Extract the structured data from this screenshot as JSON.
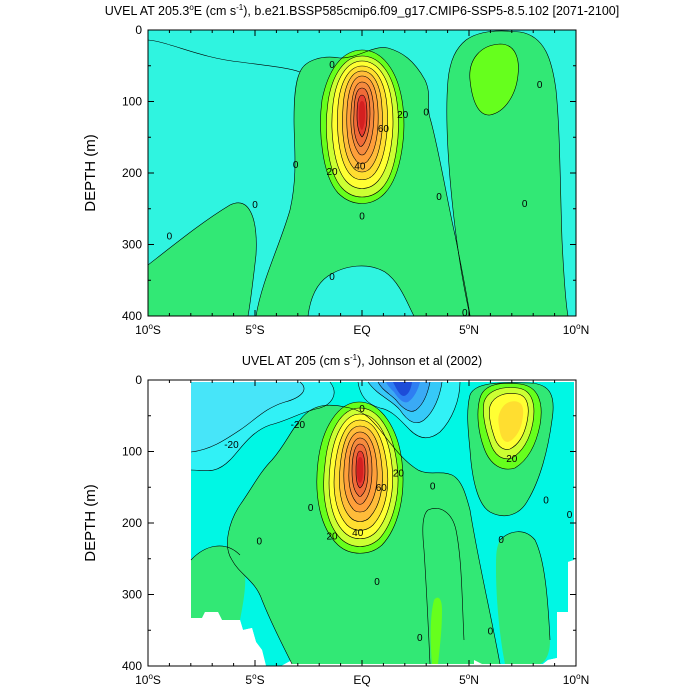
{
  "chart_data": [
    {
      "type": "heatmap",
      "subtype": "filled-contour",
      "title_main": "UVEL AT 205.3",
      "title_degree": "o",
      "title_mid": "E (cm s",
      "title_exp": "-1",
      "title_end": "), b.e21.BSSP585cmip6.f09_g17.CMIP6-SSP5-8.5.102 [2071-2100]",
      "ylabel": "DEPTH (m)",
      "xlim": [
        -10,
        10
      ],
      "ylim": [
        0,
        400
      ],
      "y_inverted": true,
      "xticks": [
        {
          "value": -10,
          "label": "10",
          "deg": "o",
          "suffix": "S"
        },
        {
          "value": -5,
          "label": "5",
          "deg": "o",
          "suffix": "S"
        },
        {
          "value": 0,
          "label": "EQ",
          "deg": "",
          "suffix": ""
        },
        {
          "value": 5,
          "label": "5",
          "deg": "o",
          "suffix": "N"
        },
        {
          "value": 10,
          "label": "10",
          "deg": "o",
          "suffix": "N"
        }
      ],
      "yticks": [
        "0",
        "100",
        "200",
        "300",
        "400"
      ],
      "core": {
        "lat": 0,
        "depth": 115,
        "max_speed": 100
      },
      "contour_labels": [
        {
          "text": "0",
          "lat": -1.4,
          "depth": 48
        },
        {
          "text": "20",
          "lat": 1.9,
          "depth": 118
        },
        {
          "text": "60",
          "lat": 1.0,
          "depth": 138
        },
        {
          "text": "40",
          "lat": -0.1,
          "depth": 190
        },
        {
          "text": "20",
          "lat": -1.4,
          "depth": 198
        },
        {
          "text": "0",
          "lat": -3.1,
          "depth": 188
        },
        {
          "text": "0",
          "lat": 3.0,
          "depth": 115
        },
        {
          "text": "0",
          "lat": 8.3,
          "depth": 76
        },
        {
          "text": "0",
          "lat": -5.0,
          "depth": 244
        },
        {
          "text": "0",
          "lat": 3.6,
          "depth": 233
        },
        {
          "text": "0",
          "lat": 7.6,
          "depth": 243
        },
        {
          "text": "0",
          "lat": -9.0,
          "depth": 288
        },
        {
          "text": "0",
          "lat": 0.0,
          "depth": 260
        },
        {
          "text": "0",
          "lat": -1.4,
          "depth": 345
        },
        {
          "text": "0",
          "lat": 4.8,
          "depth": 395
        }
      ]
    },
    {
      "type": "heatmap",
      "subtype": "filled-contour",
      "title_main": "UVEL AT 205 (cm s",
      "title_exp": "-1",
      "title_end": "), Johnson et al (2002)",
      "ylabel": "DEPTH (m)",
      "xlim": [
        -10,
        10
      ],
      "ylim": [
        0,
        400
      ],
      "y_inverted": true,
      "xticks": [
        {
          "value": -10,
          "label": "10",
          "deg": "o",
          "suffix": "S"
        },
        {
          "value": -5,
          "label": "5",
          "deg": "o",
          "suffix": "S"
        },
        {
          "value": 0,
          "label": "EQ",
          "deg": "",
          "suffix": ""
        },
        {
          "value": 5,
          "label": "5",
          "deg": "o",
          "suffix": "N"
        },
        {
          "value": 10,
          "label": "10",
          "deg": "o",
          "suffix": "N"
        }
      ],
      "yticks": [
        "0",
        "100",
        "200",
        "300",
        "400"
      ],
      "core": {
        "lat": 0,
        "depth": 125,
        "max_speed": 100
      },
      "contour_labels": [
        {
          "text": "0",
          "lat": 0.0,
          "depth": 40
        },
        {
          "text": "-20",
          "lat": -6.1,
          "depth": 90
        },
        {
          "text": "-20",
          "lat": -3.0,
          "depth": 62
        },
        {
          "text": "20",
          "lat": 1.7,
          "depth": 130
        },
        {
          "text": "60",
          "lat": 0.9,
          "depth": 150
        },
        {
          "text": "40",
          "lat": -0.2,
          "depth": 213
        },
        {
          "text": "20",
          "lat": -1.4,
          "depth": 218
        },
        {
          "text": "0",
          "lat": -2.4,
          "depth": 178
        },
        {
          "text": "0",
          "lat": 3.3,
          "depth": 148
        },
        {
          "text": "20",
          "lat": 7.0,
          "depth": 110
        },
        {
          "text": "0",
          "lat": -4.8,
          "depth": 225
        },
        {
          "text": "0",
          "lat": 6.5,
          "depth": 223
        },
        {
          "text": "0",
          "lat": 8.6,
          "depth": 168
        },
        {
          "text": "0",
          "lat": 9.7,
          "depth": 188
        },
        {
          "text": "0",
          "lat": 0.7,
          "depth": 282
        },
        {
          "text": "0",
          "lat": 2.7,
          "depth": 360
        },
        {
          "text": "0",
          "lat": 6.0,
          "depth": 351
        }
      ]
    }
  ]
}
